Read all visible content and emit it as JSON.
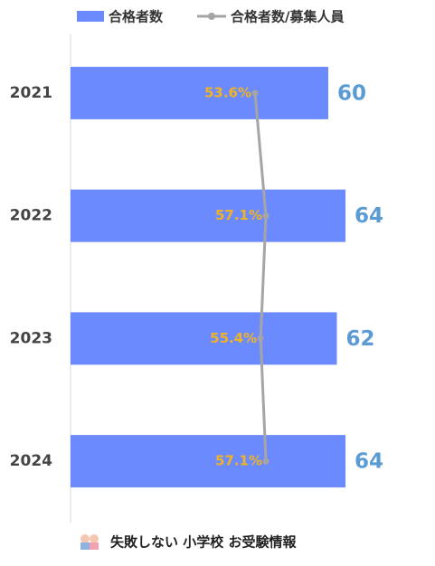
{
  "chart_data": {
    "type": "bar",
    "orientation": "horizontal",
    "categories": [
      "2021",
      "2022",
      "2023",
      "2024"
    ],
    "series": [
      {
        "name": "合格者数",
        "color": "#6b8afd",
        "values": [
          60,
          64,
          62,
          64
        ]
      },
      {
        "name": "合格者数/募集人員",
        "color": "#a5a5a5",
        "type": "line",
        "axis": "x2",
        "values": [
          53.6,
          57.1,
          55.4,
          57.1
        ],
        "value_labels": [
          "53.6%",
          "57.1%",
          "55.4%",
          "57.1%"
        ]
      }
    ],
    "xlim": [
      0,
      80
    ],
    "x2lim": [
      -6,
      105
    ],
    "bar_label_color": "#5b9bd5",
    "line_label_color": "#f0b323",
    "footer": "失敗しない 小学校 お受験情報"
  }
}
